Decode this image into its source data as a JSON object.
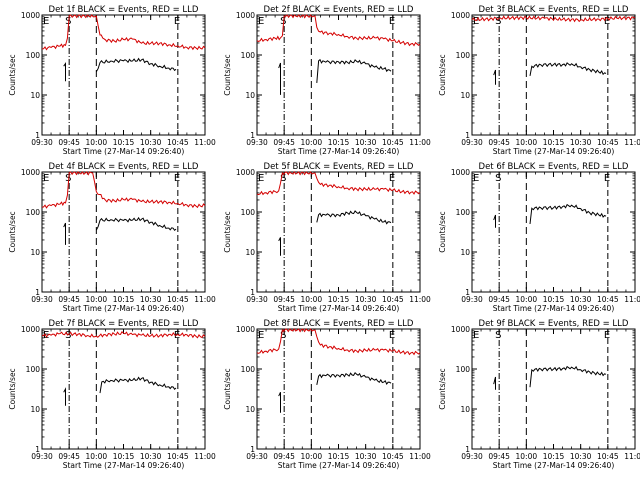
{
  "figure": {
    "xlabel": "Start Time (27-Mar-14 09:26:40)",
    "ylabel": "Counts/sec",
    "x_tick_labels": [
      "09:30",
      "09:45",
      "10:00",
      "10:15",
      "10:30",
      "10:45",
      "11:00"
    ],
    "y_tick_labels": [
      "1",
      "10",
      "100",
      "1000"
    ],
    "event_marker_labels": {
      "E": "E",
      "S": "S"
    },
    "colors": {
      "events": "#000000",
      "lld": "#d40000",
      "axes": "#000000",
      "background": "#ffffff"
    }
  },
  "chart_data": [
    {
      "type": "line",
      "title": "Det 1f BLACK = Events, RED = LLD",
      "xlim": [
        "09:30",
        "11:00"
      ],
      "ylim": [
        1,
        1000
      ],
      "y_scale": "log",
      "markers": [
        {
          "label": "E",
          "x": "09:30"
        },
        {
          "label": "S",
          "x": "09:45"
        },
        {
          "label": "E",
          "x": "10:45"
        }
      ],
      "series": [
        {
          "name": "Events",
          "x": [
            "09:42",
            "09:43",
            "09:43"
          ],
          "y": [
            50,
            58,
            22
          ],
          "seg": 1
        },
        {
          "name": "Events",
          "x": [
            "10:00",
            "10:02",
            "10:08",
            "10:15",
            "10:20",
            "10:25",
            "10:30",
            "10:35",
            "10:40",
            "10:44"
          ],
          "y": [
            38,
            68,
            75,
            72,
            68,
            72,
            60,
            55,
            50,
            45
          ]
        },
        {
          "name": "LLD",
          "x": [
            "09:30",
            "09:35",
            "09:40",
            "09:43",
            "09:44",
            "09:45",
            "10:00",
            "10:02",
            "10:05",
            "10:10",
            "10:15",
            "10:20",
            "10:25",
            "10:30",
            "10:35",
            "10:40",
            "10:45",
            "10:50",
            "10:55",
            "11:00"
          ],
          "y": [
            150,
            155,
            160,
            165,
            260,
            1000,
            1000,
            320,
            230,
            210,
            240,
            260,
            210,
            200,
            190,
            170,
            165,
            160,
            160,
            155
          ]
        }
      ]
    },
    {
      "type": "line",
      "title": "Det 2f BLACK = Events, RED = LLD",
      "xlim": [
        "09:30",
        "11:00"
      ],
      "ylim": [
        1,
        1000
      ],
      "y_scale": "log",
      "markers": [
        {
          "label": "E",
          "x": "09:30"
        },
        {
          "label": "S",
          "x": "09:45"
        },
        {
          "label": "E",
          "x": "10:45"
        }
      ],
      "series": [
        {
          "name": "Events",
          "x": [
            "09:42",
            "09:43",
            "09:43"
          ],
          "y": [
            45,
            60,
            10
          ],
          "seg": 1
        },
        {
          "name": "Events",
          "x": [
            "10:03",
            "10:04",
            "10:08",
            "10:15",
            "10:20",
            "10:25",
            "10:30",
            "10:35",
            "10:40",
            "10:44"
          ],
          "y": [
            20,
            75,
            70,
            68,
            62,
            66,
            60,
            52,
            48,
            40
          ]
        },
        {
          "name": "LLD",
          "x": [
            "09:30",
            "09:35",
            "09:40",
            "09:43",
            "09:44",
            "09:45",
            "10:02",
            "10:03",
            "10:05",
            "10:10",
            "10:15",
            "10:20",
            "10:25",
            "10:30",
            "10:35",
            "10:40",
            "10:45",
            "10:50",
            "10:55",
            "11:00"
          ],
          "y": [
            240,
            245,
            250,
            255,
            300,
            1000,
            1000,
            500,
            360,
            330,
            320,
            300,
            280,
            270,
            260,
            240,
            220,
            210,
            200,
            195
          ]
        }
      ]
    },
    {
      "type": "line",
      "title": "Det 3f BLACK = Events, RED = LLD",
      "xlim": [
        "09:30",
        "11:00"
      ],
      "ylim": [
        1,
        1000
      ],
      "y_scale": "log",
      "markers": [
        {
          "label": "E",
          "x": "09:30"
        },
        {
          "label": "S",
          "x": "09:45"
        },
        {
          "label": "E",
          "x": "10:45"
        }
      ],
      "series": [
        {
          "name": "Events",
          "x": [
            "09:42",
            "09:43",
            "09:43"
          ],
          "y": [
            30,
            40,
            18
          ],
          "seg": 1
        },
        {
          "name": "Events",
          "x": [
            "10:02",
            "10:03",
            "10:08",
            "10:15",
            "10:20",
            "10:25",
            "10:30",
            "10:35",
            "10:40",
            "10:44"
          ],
          "y": [
            30,
            55,
            60,
            58,
            55,
            57,
            50,
            45,
            40,
            35
          ]
        },
        {
          "name": "LLD",
          "x": [
            "09:30",
            "09:40",
            "09:45",
            "10:00",
            "10:10",
            "10:20",
            "10:30",
            "10:40",
            "10:50",
            "11:00"
          ],
          "y": [
            800,
            800,
            800,
            810,
            820,
            810,
            800,
            800,
            800,
            800
          ]
        }
      ]
    },
    {
      "type": "line",
      "title": "Det 4f BLACK = Events, RED = LLD",
      "xlim": [
        "09:30",
        "11:00"
      ],
      "ylim": [
        1,
        1000
      ],
      "y_scale": "log",
      "markers": [
        {
          "label": "E",
          "x": "09:30"
        },
        {
          "label": "S",
          "x": "09:45"
        },
        {
          "label": "E",
          "x": "10:45"
        }
      ],
      "series": [
        {
          "name": "Events",
          "x": [
            "09:42",
            "09:43",
            "09:43"
          ],
          "y": [
            40,
            50,
            15
          ],
          "seg": 1
        },
        {
          "name": "Events",
          "x": [
            "10:00",
            "10:02",
            "10:08",
            "10:15",
            "10:20",
            "10:25",
            "10:30",
            "10:35",
            "10:40",
            "10:44"
          ],
          "y": [
            35,
            65,
            68,
            62,
            60,
            63,
            55,
            48,
            42,
            38
          ]
        },
        {
          "name": "LLD",
          "x": [
            "09:30",
            "09:35",
            "09:40",
            "09:43",
            "09:44",
            "09:45",
            "09:58",
            "10:00",
            "10:05",
            "10:10",
            "10:15",
            "10:20",
            "10:25",
            "10:30",
            "10:35",
            "10:40",
            "10:45",
            "10:50",
            "10:55",
            "11:00"
          ],
          "y": [
            140,
            145,
            150,
            160,
            260,
            1000,
            1000,
            330,
            190,
            180,
            200,
            215,
            195,
            185,
            175,
            165,
            160,
            155,
            150,
            150
          ]
        }
      ]
    },
    {
      "type": "line",
      "title": "Det 5f BLACK = Events, RED = LLD",
      "xlim": [
        "09:30",
        "11:00"
      ],
      "ylim": [
        1,
        1000
      ],
      "y_scale": "log",
      "markers": [
        {
          "label": "E",
          "x": "09:30"
        },
        {
          "label": "S",
          "x": "09:45"
        },
        {
          "label": "E",
          "x": "10:45"
        }
      ],
      "series": [
        {
          "name": "Events",
          "x": [
            "09:42",
            "09:43",
            "09:43"
          ],
          "y": [
            18,
            22,
            8
          ],
          "seg": 1
        },
        {
          "name": "Events",
          "x": [
            "10:03",
            "10:04",
            "10:08",
            "10:15",
            "10:20",
            "10:25",
            "10:30",
            "10:35",
            "10:40",
            "10:44"
          ],
          "y": [
            55,
            90,
            88,
            85,
            90,
            92,
            80,
            70,
            60,
            55
          ]
        },
        {
          "name": "LLD",
          "x": [
            "09:30",
            "09:35",
            "09:40",
            "09:42",
            "09:43",
            "09:44",
            "10:02",
            "10:04",
            "10:05",
            "10:10",
            "10:15",
            "10:20",
            "10:25",
            "10:30",
            "10:35",
            "10:40",
            "10:45",
            "10:50",
            "10:55",
            "11:00"
          ],
          "y": [
            300,
            305,
            310,
            320,
            520,
            1000,
            1000,
            560,
            470,
            440,
            420,
            410,
            400,
            380,
            360,
            350,
            340,
            330,
            330,
            320
          ]
        }
      ]
    },
    {
      "type": "line",
      "title": "Det 6f BLACK = Events, RED = LLD",
      "xlim": [
        "09:30",
        "11:00"
      ],
      "ylim": [
        1,
        1000
      ],
      "y_scale": "log",
      "markers": [
        {
          "label": "E",
          "x": "09:30"
        },
        {
          "label": "S",
          "x": "09:45"
        },
        {
          "label": "E",
          "x": "10:45"
        }
      ],
      "series": [
        {
          "name": "Events",
          "x": [
            "09:42",
            "09:43",
            "09:43"
          ],
          "y": [
            60,
            80,
            40
          ],
          "seg": 1
        },
        {
          "name": "Events",
          "x": [
            "10:02",
            "10:03",
            "10:08",
            "10:15",
            "10:20",
            "10:25",
            "10:30",
            "10:35",
            "10:40",
            "10:44"
          ],
          "y": [
            50,
            130,
            135,
            128,
            130,
            140,
            120,
            100,
            90,
            80
          ]
        }
      ]
    },
    {
      "type": "line",
      "title": "Det 7f BLACK = Events, RED = LLD",
      "xlim": [
        "09:30",
        "11:00"
      ],
      "ylim": [
        1,
        1000
      ],
      "y_scale": "log",
      "markers": [
        {
          "label": "E",
          "x": "09:30"
        },
        {
          "label": "S",
          "x": "09:45"
        },
        {
          "label": "E",
          "x": "10:45"
        }
      ],
      "series": [
        {
          "name": "Events",
          "x": [
            "09:42",
            "09:43",
            "09:43"
          ],
          "y": [
            25,
            30,
            12
          ],
          "seg": 1
        },
        {
          "name": "Events",
          "x": [
            "10:02",
            "10:03",
            "10:08",
            "10:15",
            "10:20",
            "10:25",
            "10:30",
            "10:35",
            "10:40",
            "10:44"
          ],
          "y": [
            25,
            50,
            55,
            52,
            50,
            55,
            46,
            42,
            38,
            34
          ]
        },
        {
          "name": "LLD",
          "x": [
            "09:30",
            "09:35",
            "09:40",
            "09:45",
            "09:50",
            "09:55",
            "10:00",
            "10:05",
            "10:10",
            "10:15",
            "10:20",
            "10:25",
            "10:30",
            "10:35",
            "10:40",
            "10:45",
            "10:50",
            "10:55",
            "11:00"
          ],
          "y": [
            720,
            700,
            730,
            710,
            740,
            720,
            700,
            730,
            720,
            740,
            710,
            730,
            720,
            700,
            710,
            690,
            700,
            680,
            690
          ]
        }
      ]
    },
    {
      "type": "line",
      "title": "Det 8f BLACK = Events, RED = LLD",
      "xlim": [
        "09:30",
        "11:00"
      ],
      "ylim": [
        1,
        1000
      ],
      "y_scale": "log",
      "markers": [
        {
          "label": "E",
          "x": "09:30"
        },
        {
          "label": "S",
          "x": "09:45"
        },
        {
          "label": "E",
          "x": "10:45"
        }
      ],
      "series": [
        {
          "name": "Events",
          "x": [
            "09:42",
            "09:43",
            "09:43"
          ],
          "y": [
            20,
            25,
            8
          ],
          "seg": 1
        },
        {
          "name": "Events",
          "x": [
            "10:03",
            "10:04",
            "10:08",
            "10:15",
            "10:20",
            "10:25",
            "10:30",
            "10:35",
            "10:40",
            "10:44"
          ],
          "y": [
            40,
            70,
            72,
            70,
            68,
            70,
            62,
            55,
            50,
            45
          ]
        },
        {
          "name": "LLD",
          "x": [
            "09:30",
            "09:35",
            "09:40",
            "09:42",
            "09:43",
            "09:44",
            "10:02",
            "10:04",
            "10:05",
            "10:10",
            "10:15",
            "10:20",
            "10:25",
            "10:30",
            "10:35",
            "10:40",
            "10:45",
            "10:50",
            "10:55",
            "11:00"
          ],
          "y": [
            270,
            280,
            290,
            300,
            480,
            1000,
            1000,
            480,
            380,
            340,
            320,
            310,
            300,
            300,
            290,
            280,
            275,
            270,
            268,
            265
          ]
        }
      ]
    },
    {
      "type": "line",
      "title": "Det 9f BLACK = Events, RED = LLD",
      "xlim": [
        "09:30",
        "11:00"
      ],
      "ylim": [
        1,
        1000
      ],
      "y_scale": "log",
      "markers": [
        {
          "label": "E",
          "x": "09:30"
        },
        {
          "label": "S",
          "x": "09:45"
        },
        {
          "label": "E",
          "x": "10:45"
        }
      ],
      "series": [
        {
          "name": "Events",
          "x": [
            "09:42",
            "09:43",
            "09:43"
          ],
          "y": [
            40,
            60,
            30
          ],
          "seg": 1
        },
        {
          "name": "Events",
          "x": [
            "10:02",
            "10:03",
            "10:08",
            "10:15",
            "10:20",
            "10:25",
            "10:30",
            "10:35",
            "10:40",
            "10:44"
          ],
          "y": [
            35,
            100,
            105,
            100,
            98,
            105,
            95,
            88,
            80,
            75
          ]
        }
      ]
    }
  ]
}
